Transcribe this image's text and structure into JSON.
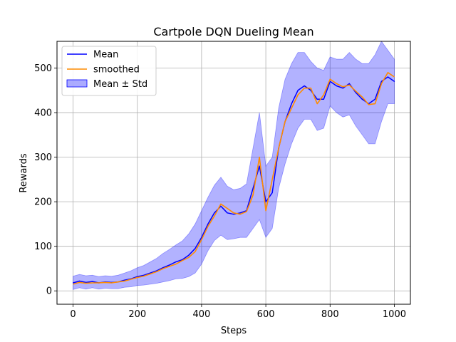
{
  "chart_data": {
    "type": "line",
    "title": "Cartpole DQN Dueling Mean",
    "xlabel": "Steps",
    "ylabel": "Rewards",
    "xlim": [
      -50,
      1050
    ],
    "ylim": [
      -30,
      560
    ],
    "xticks": [
      0,
      200,
      400,
      600,
      800,
      1000
    ],
    "yticks": [
      0,
      100,
      200,
      300,
      400,
      500
    ],
    "grid": true,
    "legend_position": "top-left",
    "colors": {
      "mean": "#0000ff",
      "smoothed": "#ff8c00",
      "band": "#0000ff"
    },
    "series": [
      {
        "name": "Mean",
        "kind": "line"
      },
      {
        "name": "smoothed",
        "kind": "line"
      },
      {
        "name": "Mean ± Std",
        "kind": "band"
      }
    ],
    "x": [
      0,
      20,
      40,
      60,
      80,
      100,
      120,
      140,
      160,
      180,
      200,
      220,
      240,
      260,
      280,
      300,
      320,
      340,
      360,
      380,
      400,
      420,
      440,
      460,
      480,
      500,
      520,
      540,
      560,
      580,
      600,
      620,
      640,
      660,
      680,
      700,
      720,
      740,
      760,
      780,
      800,
      820,
      840,
      860,
      880,
      900,
      920,
      940,
      960,
      980,
      1000
    ],
    "mean": [
      18,
      22,
      19,
      21,
      18,
      20,
      19,
      20,
      24,
      27,
      32,
      35,
      40,
      45,
      52,
      58,
      65,
      70,
      80,
      95,
      120,
      150,
      175,
      190,
      175,
      172,
      175,
      180,
      230,
      280,
      200,
      220,
      320,
      380,
      420,
      450,
      460,
      450,
      430,
      430,
      470,
      460,
      455,
      465,
      445,
      430,
      420,
      430,
      470,
      480,
      470
    ],
    "smoothed": [
      15,
      19,
      17,
      18,
      18,
      19,
      18,
      20,
      22,
      26,
      30,
      33,
      38,
      43,
      50,
      55,
      60,
      68,
      75,
      88,
      115,
      145,
      168,
      195,
      185,
      175,
      172,
      178,
      215,
      300,
      180,
      250,
      320,
      380,
      410,
      440,
      455,
      455,
      420,
      440,
      475,
      465,
      458,
      462,
      448,
      435,
      418,
      420,
      465,
      490,
      480
    ],
    "std": [
      15,
      15,
      15,
      14,
      14,
      14,
      14,
      15,
      16,
      18,
      20,
      22,
      25,
      28,
      32,
      35,
      38,
      42,
      48,
      55,
      60,
      60,
      62,
      65,
      60,
      55,
      55,
      60,
      90,
      120,
      80,
      80,
      90,
      95,
      90,
      85,
      75,
      65,
      70,
      65,
      55,
      60,
      65,
      70,
      75,
      80,
      90,
      100,
      90,
      60,
      50
    ]
  }
}
